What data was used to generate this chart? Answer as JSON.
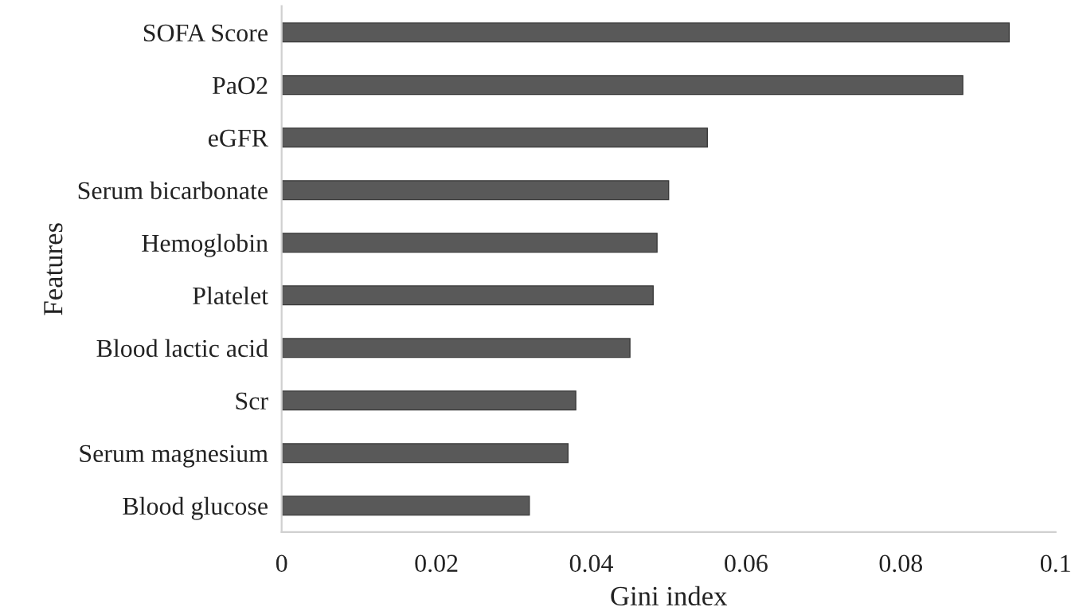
{
  "chart_data": {
    "type": "bar",
    "orientation": "horizontal",
    "xlabel": "Gini index",
    "ylabel": "Features",
    "categories": [
      "SOFA Score",
      "PaO2",
      "eGFR",
      "Serum bicarbonate",
      "Hemoglobin",
      "Platelet",
      "Blood lactic acid",
      "Scr",
      "Serum magnesium",
      "Blood glucose"
    ],
    "values": [
      0.094,
      0.088,
      0.055,
      0.05,
      0.0485,
      0.048,
      0.045,
      0.038,
      0.037,
      0.032
    ],
    "color": "#595959",
    "xlim": [
      0,
      0.1
    ],
    "xticks": [
      0,
      0.02,
      0.04,
      0.06,
      0.08,
      0.1
    ],
    "grid": false,
    "legend": false
  }
}
